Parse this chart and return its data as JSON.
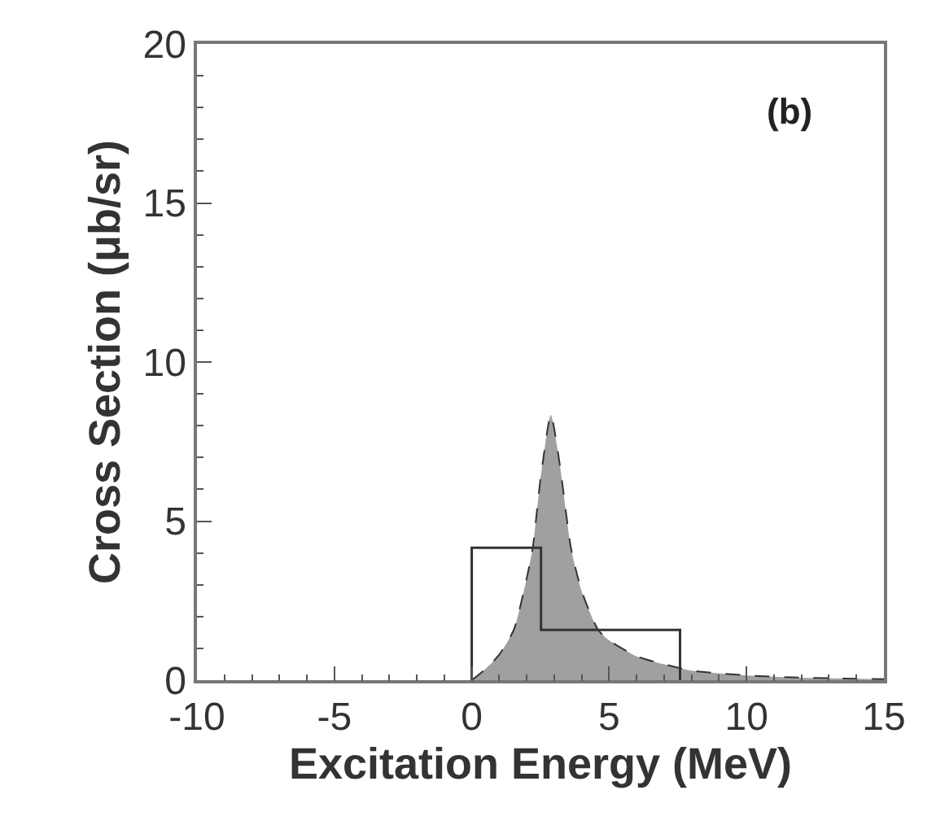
{
  "chart_data": {
    "type": "area",
    "xlabel": "Excitation Energy (MeV)",
    "ylabel": "Cross Section (μb/sr)",
    "annotations": [
      "(b)"
    ],
    "series": [
      {
        "color": "#a0a0a0",
        "line_style": "dashed",
        "x": [
          0,
          0.5,
          1,
          1.53,
          2,
          2.22,
          2.5,
          2.88,
          3.2,
          3.61,
          4,
          4.6,
          5,
          6,
          7,
          8,
          10,
          12,
          15
        ],
        "values": [
          0,
          0.35,
          0.8,
          1.58,
          3.2,
          4.16,
          6.3,
          8.34,
          6.8,
          4.16,
          2.8,
          1.58,
          1.25,
          0.75,
          0.5,
          0.3,
          0.15,
          0.08,
          0.03
        ]
      },
      {
        "type": "line",
        "color": "#333333",
        "line_style": "solid",
        "x": [
          0,
          0,
          2.52,
          2.52,
          7.58,
          7.58
        ],
        "values": [
          0,
          4.16,
          4.16,
          1.58,
          1.58,
          0
        ]
      }
    ],
    "xlim": [
      -10,
      15
    ],
    "xticks": [
      -10,
      -5,
      0,
      5,
      10,
      15
    ],
    "ylim": [
      0,
      20
    ],
    "yticks": [
      0,
      5,
      10,
      15,
      20
    ],
    "grid": false,
    "marker": "none"
  }
}
